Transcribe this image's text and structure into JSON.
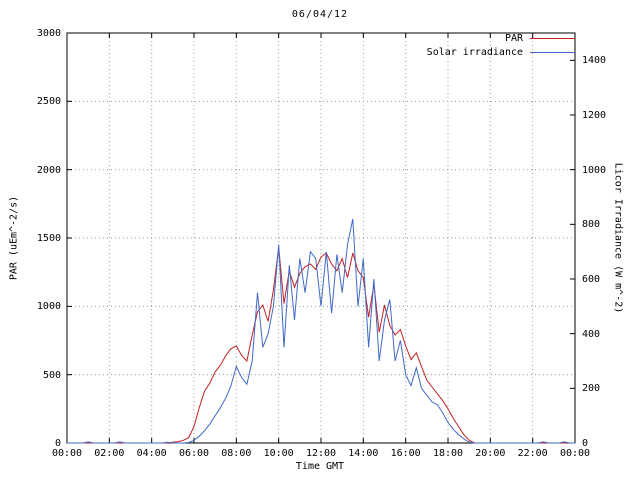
{
  "title": "06/04/12",
  "legend": {
    "par_label": "PAR",
    "irradiance_label": "Solar irradiance"
  },
  "axes": {
    "left_label": "PAR (uEm^-2/s)",
    "right_label": "Licor Irradiance (W m^-2)",
    "x_label": "Time GMT",
    "x_ticks": {
      "values": [
        0,
        2,
        4,
        6,
        8,
        10,
        12,
        14,
        16,
        18,
        20,
        22,
        24
      ],
      "labels": [
        "00:00",
        "02:00",
        "04:00",
        "06:00",
        "08:00",
        "10:00",
        "12:00",
        "14:00",
        "16:00",
        "18:00",
        "20:00",
        "22:00",
        "00:00"
      ]
    },
    "left_ticks": {
      "values": [
        0,
        500,
        1000,
        1500,
        2000,
        2500,
        3000
      ],
      "labels": [
        "0",
        "500",
        "1000",
        "1500",
        "2000",
        "2500",
        "3000"
      ]
    },
    "right_ticks": {
      "values": [
        0,
        200,
        400,
        600,
        800,
        1000,
        1200,
        1400
      ],
      "labels": [
        "0",
        "200",
        "400",
        "600",
        "800",
        "1000",
        "1200",
        "1400"
      ]
    }
  },
  "chart_data": {
    "type": "line",
    "title": "06/04/12",
    "x_label": "Time GMT",
    "y_left_label": "PAR (uEm^-2/s)",
    "y_right_label": "Licor Irradiance (W m^-2)",
    "xlim": [
      0,
      24
    ],
    "ylim_left": [
      0,
      3000
    ],
    "ylim_right": [
      0,
      1500
    ],
    "grid": true,
    "legend_position": "top-right",
    "x_hours": [
      0,
      0.25,
      0.5,
      0.75,
      1,
      1.25,
      1.5,
      1.75,
      2,
      2.25,
      2.5,
      2.75,
      3,
      3.25,
      3.5,
      3.75,
      4,
      4.25,
      4.5,
      4.75,
      5,
      5.25,
      5.5,
      5.75,
      6,
      6.25,
      6.5,
      6.75,
      7,
      7.25,
      7.5,
      7.75,
      8,
      8.25,
      8.5,
      8.75,
      9,
      9.25,
      9.5,
      9.75,
      10,
      10.25,
      10.5,
      10.75,
      11,
      11.25,
      11.5,
      11.75,
      12,
      12.25,
      12.5,
      12.75,
      13,
      13.25,
      13.5,
      13.75,
      14,
      14.25,
      14.5,
      14.75,
      15,
      15.25,
      15.5,
      15.75,
      16,
      16.25,
      16.5,
      16.75,
      17,
      17.25,
      17.5,
      17.75,
      18,
      18.25,
      18.5,
      18.75,
      19,
      19.25,
      19.5,
      19.75,
      20,
      20.25,
      20.5,
      20.75,
      21,
      21.25,
      21.5,
      21.75,
      22,
      22.25,
      22.5,
      22.75,
      23,
      23.25,
      23.5,
      23.75,
      24
    ],
    "series": [
      {
        "name": "PAR",
        "axis": "left",
        "units": "uEm^-2/s",
        "color": "#c22121",
        "values": [
          0,
          0,
          0,
          0,
          0,
          0,
          0,
          0,
          0,
          0,
          0,
          0,
          0,
          0,
          0,
          0,
          0,
          0,
          0,
          0,
          5,
          10,
          20,
          40,
          120,
          260,
          380,
          440,
          520,
          570,
          640,
          690,
          710,
          640,
          600,
          790,
          960,
          1010,
          890,
          1120,
          1430,
          1020,
          1260,
          1140,
          1240,
          1290,
          1310,
          1270,
          1360,
          1390,
          1310,
          1260,
          1350,
          1210,
          1390,
          1260,
          1210,
          920,
          1160,
          810,
          1010,
          860,
          790,
          830,
          710,
          610,
          660,
          560,
          460,
          410,
          360,
          310,
          250,
          180,
          120,
          60,
          20,
          0,
          0,
          0,
          0,
          0,
          0,
          0,
          0,
          0,
          0,
          0,
          0,
          0,
          0,
          0,
          0,
          0,
          0,
          0,
          0
        ]
      },
      {
        "name": "Solar irradiance",
        "axis": "right",
        "units": "W m^-2",
        "color": "#4169c8",
        "values": [
          0,
          0,
          0,
          0,
          4,
          0,
          0,
          0,
          0,
          0,
          4,
          0,
          0,
          0,
          0,
          0,
          0,
          0,
          0,
          3,
          0,
          0,
          0,
          2,
          10,
          25,
          45,
          70,
          100,
          130,
          165,
          210,
          280,
          240,
          215,
          300,
          550,
          350,
          400,
          500,
          725,
          350,
          650,
          450,
          675,
          550,
          700,
          675,
          500,
          700,
          475,
          690,
          550,
          725,
          820,
          500,
          675,
          350,
          600,
          300,
          450,
          525,
          300,
          375,
          250,
          210,
          275,
          200,
          175,
          150,
          140,
          110,
          75,
          50,
          30,
          15,
          3,
          0,
          0,
          0,
          0,
          0,
          0,
          0,
          0,
          0,
          0,
          0,
          0,
          0,
          4,
          0,
          0,
          0,
          4,
          0,
          0
        ]
      }
    ]
  }
}
